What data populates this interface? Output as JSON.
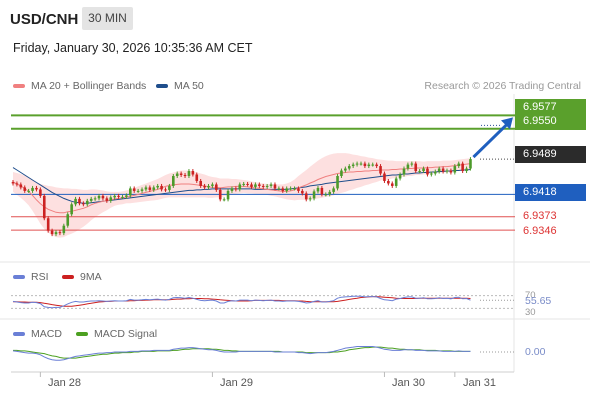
{
  "header": {
    "symbol": "USD/CNH",
    "timeframe": "30 MIN",
    "datetime": "Friday, January 30, 2026 10:35:36 AM CET"
  },
  "legend": {
    "ma20_label": "MA 20 + Bollinger Bands",
    "ma50_label": "MA 50",
    "credit": "Research © 2026 Trading Central",
    "rsi_label": "RSI",
    "rsi_ma_label": "9MA",
    "macd_label": "MACD",
    "macd_signal_label": "MACD Signal"
  },
  "colors": {
    "ma20": "#f08080",
    "ma50": "#1f4e8c",
    "band_fill": "#fde0e0",
    "resistance": "#5aa02c",
    "pivot": "#1f5fbf",
    "support": "#e05050",
    "arrow": "#1f5fbf",
    "rsi": "#6a7fd6",
    "rsi_ma": "#cc2020",
    "macd": "#6a7fd6",
    "macd_signal": "#4ca020",
    "candle_up": "#4c9a2a",
    "candle_down": "#cc2222"
  },
  "chart_data": {
    "type": "candlestick",
    "y_range": [
      6.929,
      6.962
    ],
    "levels": [
      {
        "value": 6.9577,
        "label": "6.9577",
        "kind": "resistance"
      },
      {
        "value": 6.955,
        "label": "6.9550",
        "kind": "resistance"
      },
      {
        "value": 6.9489,
        "label": "6.9489",
        "kind": "last"
      },
      {
        "value": 6.9418,
        "label": "6.9418",
        "kind": "pivot"
      },
      {
        "value": 6.9373,
        "label": "6.9373",
        "kind": "support"
      },
      {
        "value": 6.9346,
        "label": "6.9346",
        "kind": "support"
      }
    ],
    "x_ticks": [
      {
        "label": "Jan 28",
        "index": 7
      },
      {
        "label": "Jan 29",
        "index": 51
      },
      {
        "label": "Jan 30",
        "index": 95
      },
      {
        "label": "Jan 31",
        "index": 113
      }
    ],
    "close": [
      6.944,
      6.9438,
      6.9432,
      6.9425,
      6.9425,
      6.9431,
      6.9428,
      6.9415,
      6.937,
      6.9345,
      6.9338,
      6.9342,
      6.934,
      6.9355,
      6.9378,
      6.9398,
      6.9409,
      6.94,
      6.9398,
      6.9405,
      6.9409,
      6.941,
      6.9415,
      6.941,
      6.9405,
      6.9412,
      6.9415,
      6.9413,
      6.9413,
      6.9416,
      6.943,
      6.9425,
      6.9425,
      6.9428,
      6.9432,
      6.9427,
      6.9432,
      6.9435,
      6.9428,
      6.9427,
      6.9435,
      6.9455,
      6.946,
      6.9457,
      6.9455,
      6.9465,
      6.9458,
      6.9445,
      6.9435,
      6.9432,
      6.9435,
      6.9438,
      6.9427,
      6.9408,
      6.9408,
      6.9425,
      6.943,
      6.9428,
      6.9438,
      6.9439,
      6.9438,
      6.9433,
      6.9438,
      6.9435,
      6.9433,
      6.9435,
      6.9438,
      6.943,
      6.943,
      6.9425,
      6.943,
      6.943,
      6.943,
      6.9425,
      6.942,
      6.9408,
      6.941,
      6.9424,
      6.9431,
      6.9418,
      6.9418,
      6.9423,
      6.943,
      6.9455,
      6.9466,
      6.947,
      6.9475,
      6.9478,
      6.948,
      6.948,
      6.9475,
      6.9478,
      6.9478,
      6.9475,
      6.946,
      6.9445,
      6.944,
      6.9435,
      6.945,
      6.9458,
      6.947,
      6.9478,
      6.948,
      6.9465,
      6.9465,
      6.947,
      6.9458,
      6.946,
      6.9464,
      6.947,
      6.9464,
      6.9466,
      6.9462,
      6.9475,
      6.948,
      6.9465,
      6.947,
      6.9489
    ],
    "ma20": [
      6.9443,
      6.9439,
      6.9435,
      6.943,
      6.9424,
      6.9416,
      6.9407,
      6.9399,
      6.9393,
      6.9388,
      6.9385,
      6.9382,
      6.9381,
      6.9381,
      6.9383,
      6.9384,
      6.9386,
      6.9388,
      6.939,
      6.9393,
      6.9397,
      6.94,
      6.9402,
      6.9404,
      6.9405,
      6.9407,
      6.9409,
      6.941,
      6.9411,
      6.9413,
      6.9414,
      6.9416,
      6.9418,
      6.942,
      6.9422,
      6.9424,
      6.9426,
      6.9428,
      6.9431,
      6.9434,
      6.9436,
      6.9437,
      6.9438,
      6.9439,
      6.9439,
      6.9439,
      6.9438,
      6.9437,
      6.9436,
      6.9435,
      6.9433,
      6.9432,
      6.9432,
      6.9431,
      6.9432,
      6.9433,
      6.9433,
      6.9434,
      6.9434,
      6.9434,
      6.9433,
      6.9432,
      6.9431,
      6.943,
      6.9429,
      6.9428,
      6.9427,
      6.9426,
      6.9425,
      6.9424,
      6.9424,
      6.9425,
      6.9427,
      6.9431,
      6.9434,
      6.9437,
      6.9441,
      6.9444,
      6.9448,
      6.9451,
      6.9454,
      6.9456,
      6.9458,
      6.946,
      6.9461,
      6.9462,
      6.9463,
      6.9463,
      6.9464,
      6.9464,
      6.9465,
      6.9465,
      6.9466,
      6.9466,
      6.9467,
      6.9467,
      6.9467,
      6.9468,
      6.9468,
      6.9469,
      6.9469,
      6.947,
      6.947,
      6.9471,
      6.9471,
      6.9471,
      6.9472,
      6.9472,
      6.9473,
      6.9473,
      6.9474,
      6.9474,
      6.9475,
      6.9476,
      6.9477,
      6.9478,
      6.9479,
      6.948
    ],
    "ma50": [
      6.9472,
      6.9467,
      6.9462,
      6.9457,
      6.9452,
      6.9447,
      6.9442,
      6.9437,
      6.9432,
      6.9427,
      6.9422,
      6.9418,
      6.9414,
      6.941,
      6.9407,
      6.9404,
      6.9402,
      6.9401,
      6.94,
      6.94,
      6.9401,
      6.9402,
      6.9403,
      6.9404,
      6.9405,
      6.9406,
      6.9407,
      6.9408,
      6.9409,
      6.941,
      6.9411,
      6.9412,
      6.9413,
      6.9414,
      6.9415,
      6.9416,
      6.9417,
      6.9418,
      6.9419,
      6.942,
      6.9421,
      6.9422,
      6.9423,
      6.9424,
      6.9425,
      6.9426,
      6.9426,
      6.9427,
      6.9427,
      6.9428,
      6.9428,
      6.9429,
      6.9429,
      6.9429,
      6.9429,
      6.9429,
      6.9429,
      6.9429,
      6.9429,
      6.9429,
      6.9429,
      6.9429,
      6.9428,
      6.9428,
      6.9428,
      6.9428,
      6.9428,
      6.9428,
      6.9428,
      6.9428,
      6.9428,
      6.9429,
      6.943,
      6.9431,
      6.9432,
      6.9433,
      6.9435,
      6.9436,
      6.9437,
      6.9438,
      6.944,
      6.9441,
      6.9442,
      6.9443,
      6.9444,
      6.9445,
      6.9446,
      6.9447,
      6.9448,
      6.9449,
      6.945,
      6.9451,
      6.9452,
      6.9453,
      6.9454,
      6.9455,
      6.9456,
      6.9457,
      6.9457,
      6.9458,
      6.9459,
      6.9459,
      6.946,
      6.9461,
      6.9461,
      6.9462,
      6.9462,
      6.9463,
      6.9463,
      6.9464,
      6.9464,
      6.9465,
      6.9465,
      6.9466,
      6.9466,
      6.9467,
      6.9467,
      6.9468
    ],
    "bb_width": [
      0.002,
      0.0022,
      0.0024,
      0.0026,
      0.0028,
      0.0031,
      0.0035,
      0.004,
      0.0044,
      0.0047,
      0.0049,
      0.005,
      0.005,
      0.0049,
      0.0047,
      0.0045,
      0.0043,
      0.004,
      0.0037,
      0.0034,
      0.0031,
      0.0028,
      0.0025,
      0.0022,
      0.0019,
      0.0016,
      0.0014,
      0.0013,
      0.0013,
      0.0013,
      0.0014,
      0.0015,
      0.0016,
      0.0017,
      0.0018,
      0.0019,
      0.002,
      0.0021,
      0.0022,
      0.0023,
      0.0024,
      0.0025,
      0.0026,
      0.0027,
      0.0027,
      0.0027,
      0.0026,
      0.0025,
      0.0024,
      0.0023,
      0.0022,
      0.0021,
      0.002,
      0.0019,
      0.0018,
      0.0017,
      0.0016,
      0.0015,
      0.0014,
      0.0013,
      0.0013,
      0.0012,
      0.0012,
      0.0011,
      0.0011,
      0.0011,
      0.0012,
      0.0012,
      0.0013,
      0.0014,
      0.0016,
      0.0018,
      0.0021,
      0.0024,
      0.0027,
      0.003,
      0.0033,
      0.0036,
      0.0038,
      0.004,
      0.0041,
      0.0042,
      0.0042,
      0.0041,
      0.004,
      0.0039,
      0.0037,
      0.0035,
      0.0033,
      0.0031,
      0.0029,
      0.0027,
      0.0025,
      0.0023,
      0.0021,
      0.002,
      0.0019,
      0.0018,
      0.0017,
      0.0016,
      0.0016,
      0.0015,
      0.0015,
      0.0014,
      0.0014,
      0.0013,
      0.0013,
      0.0013,
      0.0012,
      0.0012,
      0.0012,
      0.0012,
      0.0011,
      0.0011,
      0.0011,
      0.0011,
      0.0011,
      0.0011,
      0.0011,
      0.0011
    ],
    "target_arrow": {
      "from": 6.9489,
      "to": 6.9577
    },
    "rsi": {
      "last_label": "55.65",
      "levels": [
        "70",
        "30"
      ],
      "values": [
        52,
        50,
        48,
        47,
        47,
        49,
        48,
        45,
        35,
        33,
        32,
        33,
        33,
        38,
        44,
        49,
        52,
        50,
        50,
        52,
        53,
        53,
        54,
        53,
        52,
        53,
        54,
        53,
        53,
        54,
        58,
        56,
        56,
        57,
        58,
        57,
        58,
        59,
        57,
        56,
        58,
        63,
        64,
        63,
        62,
        64,
        62,
        58,
        55,
        54,
        55,
        56,
        53,
        47,
        47,
        52,
        54,
        53,
        56,
        56,
        56,
        54,
        56,
        55,
        54,
        55,
        56,
        53,
        53,
        52,
        53,
        53,
        53,
        52,
        50,
        47,
        48,
        52,
        54,
        50,
        50,
        52,
        54,
        62,
        65,
        66,
        67,
        68,
        68,
        68,
        66,
        67,
        67,
        66,
        61,
        57,
        56,
        54,
        59,
        61,
        64,
        66,
        66,
        62,
        62,
        63,
        60,
        60,
        61,
        63,
        61,
        62,
        60,
        64,
        65,
        60,
        61,
        55.65
      ],
      "ma9": [
        51,
        51,
        50,
        50,
        49,
        49,
        49,
        48,
        46,
        44,
        42,
        40,
        38,
        37,
        37,
        37,
        38,
        40,
        42,
        44,
        46,
        48,
        50,
        51,
        52,
        52,
        53,
        53,
        53,
        53,
        54,
        54,
        55,
        55,
        56,
        56,
        57,
        57,
        57,
        57,
        57,
        58,
        59,
        59,
        60,
        60,
        61,
        61,
        61,
        60,
        60,
        59,
        58,
        57,
        56,
        55,
        54,
        53,
        53,
        53,
        53,
        54,
        55,
        55,
        55,
        55,
        55,
        55,
        55,
        54,
        54,
        54,
        54,
        53,
        53,
        52,
        51,
        51,
        51,
        51,
        51,
        51,
        51,
        52,
        54,
        56,
        58,
        60,
        62,
        64,
        65,
        66,
        67,
        67,
        66,
        65,
        64,
        63,
        62,
        61,
        61,
        61,
        61,
        61,
        62,
        62,
        62,
        62,
        62,
        62,
        62,
        62,
        62,
        62,
        62,
        62,
        62,
        61
      ]
    },
    "macd": {
      "last_label": "0.00",
      "macd": [
        0.0002,
        0.0001,
        0.0,
        -0.0001,
        -0.0002,
        -0.0002,
        -0.0003,
        -0.0005,
        -0.0009,
        -0.0012,
        -0.0014,
        -0.0015,
        -0.0015,
        -0.0014,
        -0.0012,
        -0.001,
        -0.0008,
        -0.0007,
        -0.0006,
        -0.0005,
        -0.0004,
        -0.0003,
        -0.0002,
        -0.0002,
        -0.0001,
        -0.0001,
        0.0,
        0.0,
        0.0,
        0.0,
        0.0001,
        0.0001,
        0.0001,
        0.0002,
        0.0002,
        0.0002,
        0.0003,
        0.0003,
        0.0003,
        0.0003,
        0.0003,
        0.0005,
        0.0006,
        0.0007,
        0.0007,
        0.0008,
        0.0008,
        0.0007,
        0.0006,
        0.0005,
        0.0004,
        0.0004,
        0.0003,
        0.0001,
        0.0,
        0.0,
        0.0,
        0.0,
        0.0001,
        0.0001,
        0.0001,
        0.0001,
        0.0001,
        0.0001,
        0.0001,
        0.0001,
        0.0001,
        0.0,
        0.0,
        0.0,
        0.0,
        0.0,
        0.0,
        -0.0001,
        -0.0001,
        -0.0002,
        -0.0003,
        -0.0002,
        -0.0001,
        -0.0001,
        -0.0001,
        0.0,
        0.0001,
        0.0003,
        0.0005,
        0.0007,
        0.0008,
        0.0009,
        0.001,
        0.001,
        0.001,
        0.001,
        0.001,
        0.0009,
        0.0007,
        0.0005,
        0.0004,
        0.0003,
        0.0003,
        0.0003,
        0.0004,
        0.0004,
        0.0004,
        0.0003,
        0.0003,
        0.0003,
        0.0002,
        0.0002,
        0.0002,
        0.0002,
        0.0001,
        0.0001,
        0.0001,
        0.0001,
        0.0002,
        0.0001,
        0.0001,
        0.0001
      ],
      "signal": [
        0.0003,
        0.0003,
        0.0002,
        0.0002,
        0.0001,
        0.0,
        -0.0001,
        -0.0002,
        -0.0003,
        -0.0005,
        -0.0007,
        -0.0008,
        -0.001,
        -0.0011,
        -0.0011,
        -0.0011,
        -0.0011,
        -0.001,
        -0.0009,
        -0.0008,
        -0.0007,
        -0.0006,
        -0.0005,
        -0.0004,
        -0.0004,
        -0.0003,
        -0.0002,
        -0.0002,
        -0.0001,
        -0.0001,
        -0.0001,
        0.0,
        0.0,
        0.0001,
        0.0001,
        0.0001,
        0.0001,
        0.0002,
        0.0002,
        0.0002,
        0.0002,
        0.0003,
        0.0003,
        0.0004,
        0.0005,
        0.0005,
        0.0006,
        0.0006,
        0.0006,
        0.0006,
        0.0006,
        0.0005,
        0.0005,
        0.0004,
        0.0003,
        0.0003,
        0.0002,
        0.0002,
        0.0001,
        0.0001,
        0.0001,
        0.0001,
        0.0001,
        0.0001,
        0.0001,
        0.0001,
        0.0001,
        0.0001,
        0.0001,
        0.0,
        0.0,
        0.0,
        0.0,
        0.0,
        0.0,
        -0.0001,
        -0.0001,
        -0.0001,
        -0.0001,
        -0.0001,
        -0.0001,
        -0.0001,
        0.0,
        0.0,
        0.0001,
        0.0002,
        0.0004,
        0.0005,
        0.0006,
        0.0007,
        0.0008,
        0.0008,
        0.0009,
        0.0009,
        0.0009,
        0.0008,
        0.0007,
        0.0007,
        0.0006,
        0.0005,
        0.0005,
        0.0004,
        0.0004,
        0.0004,
        0.0004,
        0.0003,
        0.0003,
        0.0003,
        0.0003,
        0.0002,
        0.0002,
        0.0002,
        0.0002,
        0.0001,
        0.0001,
        0.0001,
        0.0001,
        0.0001
      ]
    }
  }
}
